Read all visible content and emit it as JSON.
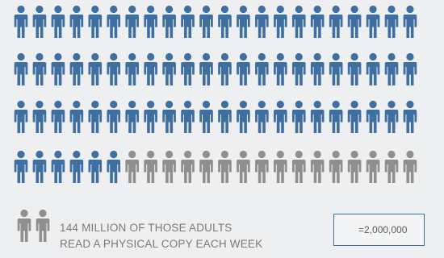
{
  "chart_data": {
    "type": "pictogram",
    "unit_value": 2000000,
    "unit_label": "=2,000,000",
    "total_icons": 88,
    "highlighted_icons": 72,
    "colors": {
      "highlighted": "#3e6fa0",
      "remaining": "#8f8f8f",
      "background": "#eeeff0",
      "text": "#7a7a7a"
    },
    "caption": [
      "144 MILLION OF THOSE ADULTS",
      "READ A PHYSICAL COPY EACH WEEK"
    ]
  }
}
